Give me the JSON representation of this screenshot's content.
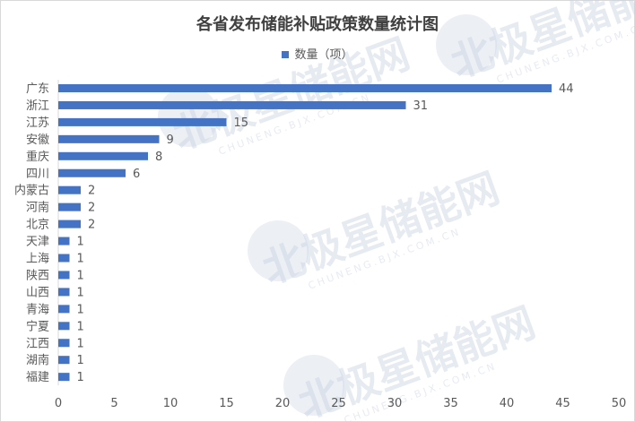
{
  "chart_data": {
    "type": "bar",
    "orientation": "horizontal",
    "title": "各省发布储能补贴政策数量统计图",
    "categories": [
      "广东",
      "浙江",
      "江苏",
      "安徽",
      "重庆",
      "四川",
      "内蒙古",
      "河南",
      "北京",
      "天津",
      "上海",
      "陕西",
      "山西",
      "青海",
      "宁夏",
      "江西",
      "湖南",
      "福建"
    ],
    "series": [
      {
        "name": "数量（项）",
        "values": [
          44,
          31,
          15,
          9,
          8,
          6,
          2,
          2,
          2,
          1,
          1,
          1,
          1,
          1,
          1,
          1,
          1,
          1
        ]
      }
    ],
    "xlim": [
      0,
      50
    ],
    "xticks": [
      0,
      5,
      10,
      15,
      20,
      25,
      30,
      35,
      40,
      45,
      50
    ],
    "grid": false,
    "legend_position": "top",
    "data_labels": true,
    "colors": {
      "bar": "#4472c4",
      "text": "#595959",
      "title": "#404040",
      "axis": "#d9d9d9"
    }
  },
  "watermark": {
    "text": "北极星储能网",
    "subtext": "CHUNENG.BJX.COM.CN"
  }
}
